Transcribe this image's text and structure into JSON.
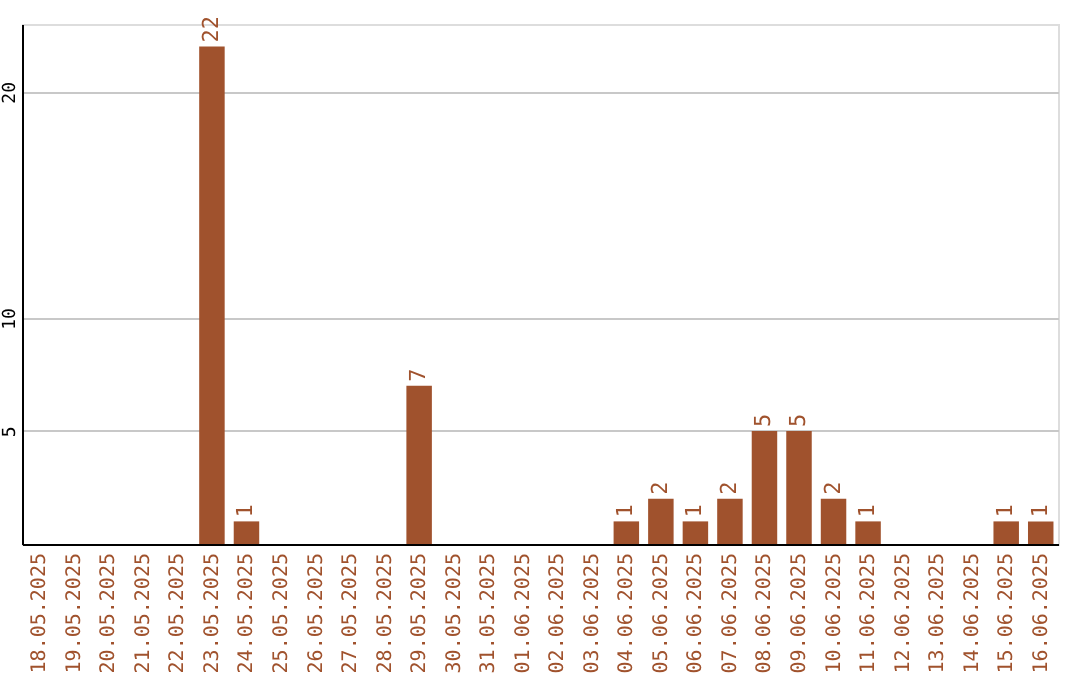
{
  "chart_data": {
    "type": "bar",
    "categories": [
      "18.05.2025",
      "19.05.2025",
      "20.05.2025",
      "21.05.2025",
      "22.05.2025",
      "23.05.2025",
      "24.05.2025",
      "25.05.2025",
      "26.05.2025",
      "27.05.2025",
      "28.05.2025",
      "29.05.2025",
      "30.05.2025",
      "31.05.2025",
      "01.06.2025",
      "02.06.2025",
      "03.06.2025",
      "04.06.2025",
      "05.06.2025",
      "06.06.2025",
      "07.06.2025",
      "08.06.2025",
      "09.06.2025",
      "10.06.2025",
      "11.06.2025",
      "12.06.2025",
      "13.06.2025",
      "14.06.2025",
      "15.06.2025",
      "16.06.2025"
    ],
    "values": [
      0,
      0,
      0,
      0,
      0,
      22,
      1,
      0,
      0,
      0,
      0,
      7,
      0,
      0,
      0,
      0,
      0,
      1,
      2,
      1,
      2,
      5,
      5,
      2,
      1,
      0,
      0,
      0,
      1,
      1
    ],
    "value_labels": [
      null,
      null,
      null,
      null,
      null,
      "22",
      "1",
      null,
      null,
      null,
      null,
      "7",
      null,
      null,
      null,
      null,
      null,
      "1",
      "2",
      "1",
      "2",
      "5",
      "5",
      "2",
      "1",
      null,
      null,
      null,
      "1",
      "1"
    ],
    "color": "#a0522d",
    "ylim": [
      0,
      23
    ],
    "yticks": [
      5,
      10,
      20
    ],
    "grid": "y"
  }
}
